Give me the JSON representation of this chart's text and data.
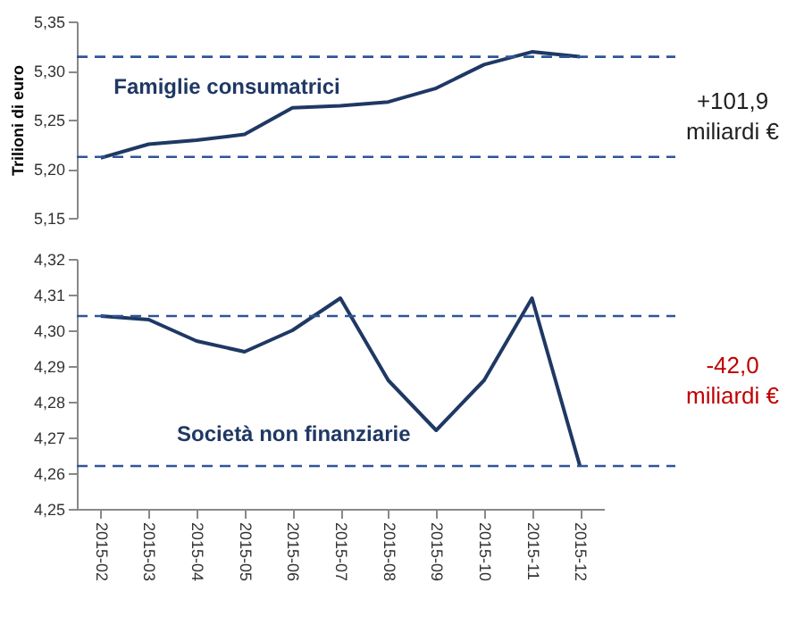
{
  "chart_data": [
    {
      "type": "line",
      "ylabel": "Trilioni di euro",
      "tick_labels": "y",
      "grid": false,
      "marker": "none",
      "line_style": "solid",
      "categories": [
        "2015-02",
        "2015-03",
        "2015-04",
        "2015-05",
        "2015-06",
        "2015-07",
        "2015-08",
        "2015-09",
        "2015-10",
        "2015-11",
        "2015-12"
      ],
      "series": [
        {
          "name": "Famiglie consumatrici",
          "color": "#1f3864",
          "values": [
            5.211,
            5.225,
            5.229,
            5.235,
            5.262,
            5.264,
            5.268,
            5.282,
            5.306,
            5.319,
            5.314
          ]
        }
      ],
      "ylim": [
        5.15,
        5.35
      ],
      "yticks": [
        {
          "value": 5.15,
          "label": "5,15"
        },
        {
          "value": 5.2,
          "label": "5,20"
        },
        {
          "value": 5.25,
          "label": "5,25"
        },
        {
          "value": 5.3,
          "label": "5,30"
        },
        {
          "value": 5.35,
          "label": "5,35"
        }
      ],
      "ref_lines": [
        {
          "axis": "y",
          "value": 5.212,
          "color": "#2f5597",
          "line_style": "dashed"
        },
        {
          "axis": "y",
          "value": 5.314,
          "color": "#2f5597",
          "line_style": "dashed"
        }
      ],
      "annotations": [
        "+101,9\nmiliardi €"
      ]
    },
    {
      "type": "line",
      "grid": false,
      "marker": "none",
      "line_style": "solid",
      "categories": [
        "2015-02",
        "2015-03",
        "2015-04",
        "2015-05",
        "2015-06",
        "2015-07",
        "2015-08",
        "2015-09",
        "2015-10",
        "2015-11",
        "2015-12"
      ],
      "series": [
        {
          "name": "Società non finanziarie",
          "color": "#1f3864",
          "values": [
            4.304,
            4.303,
            4.297,
            4.294,
            4.3,
            4.309,
            4.286,
            4.272,
            4.286,
            4.309,
            4.262
          ]
        }
      ],
      "ylim": [
        4.25,
        4.32
      ],
      "yticks": [
        {
          "value": 4.25,
          "label": "4,25"
        },
        {
          "value": 4.26,
          "label": "4,26"
        },
        {
          "value": 4.27,
          "label": "4,27"
        },
        {
          "value": 4.28,
          "label": "4,28"
        },
        {
          "value": 4.29,
          "label": "4,29"
        },
        {
          "value": 4.3,
          "label": "4,30"
        },
        {
          "value": 4.31,
          "label": "4,31"
        },
        {
          "value": 4.32,
          "label": "4,32"
        }
      ],
      "ref_lines": [
        {
          "axis": "y",
          "value": 4.304,
          "color": "#2f5597",
          "line_style": "dashed"
        },
        {
          "axis": "y",
          "value": 4.262,
          "color": "#2f5597",
          "line_style": "dashed"
        }
      ],
      "annotations": [
        "-42,0\nmiliardi €"
      ]
    }
  ]
}
